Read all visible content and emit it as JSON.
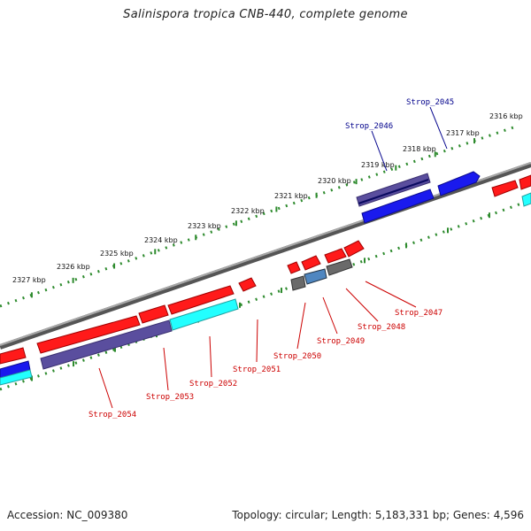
{
  "title": "Salinispora tropica CNB-440, complete genome",
  "footer": {
    "accession": "Accession: NC_009380",
    "summary": "Topology: circular; Length: 5,183,331 bp; Genes: 4,596"
  },
  "colors": {
    "backbone": "#8a8a8a",
    "ruler": "#2e8b2e",
    "forward_label": "#00008b",
    "reverse_label": "#cc0000",
    "red": "#ff1a1a",
    "blue": "#1a1aee",
    "purple": "#5a4e9e",
    "cyan": "#22ffff",
    "gray": "#6a6a6a",
    "steel": "#4f86c0"
  },
  "ruler_labels": [
    "2316 kbp",
    "2317 kbp",
    "2318 kbp",
    "2319 kbp",
    "2320 kbp",
    "2321 kbp",
    "2322 kbp",
    "2323 kbp",
    "2324 kbp",
    "2325 kbp",
    "2326 kbp",
    "2327 kbp"
  ],
  "forward_labels": [
    "Strop_2045",
    "Strop_2046"
  ],
  "reverse_labels": [
    "Strop_2047",
    "Strop_2048",
    "Strop_2049",
    "Strop_2050",
    "Strop_2051",
    "Strop_2052",
    "Strop_2053",
    "Strop_2054"
  ]
}
